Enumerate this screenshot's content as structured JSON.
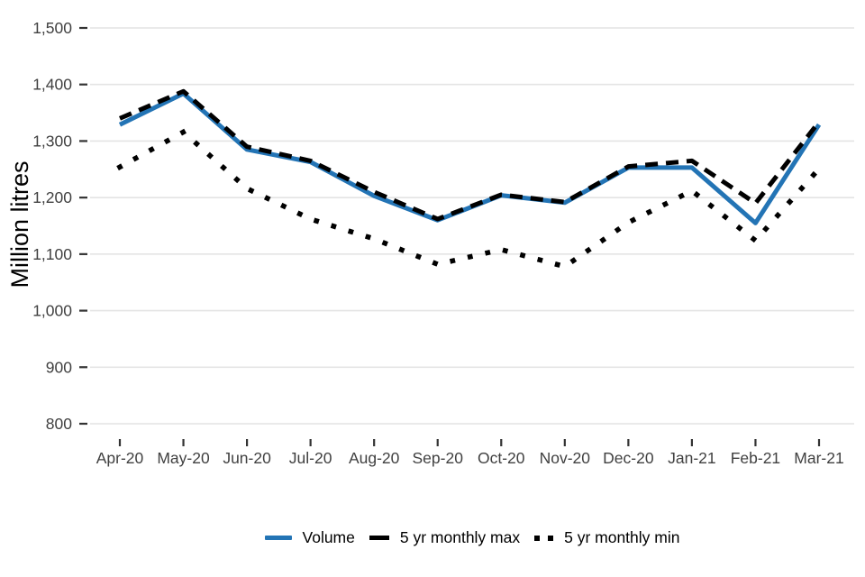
{
  "chart_data": {
    "type": "line",
    "title": "",
    "xlabel": "",
    "ylabel": "Million litres",
    "categories": [
      "Apr-20",
      "May-20",
      "Jun-20",
      "Jul-20",
      "Aug-20",
      "Sep-20",
      "Oct-20",
      "Nov-20",
      "Dec-20",
      "Jan-21",
      "Feb-21",
      "Mar-21"
    ],
    "series": [
      {
        "name": "Volume",
        "color": "#2374B5",
        "style": "solid",
        "values": [
          1329,
          1384,
          1285,
          1263,
          1203,
          1160,
          1204,
          1191,
          1253,
          1253,
          1155,
          1329
        ]
      },
      {
        "name": "5 yr monthly max",
        "color": "#000000",
        "style": "dashed",
        "values": [
          1340,
          1388,
          1290,
          1265,
          1210,
          1162,
          1205,
          1192,
          1255,
          1265,
          1190,
          1334
        ]
      },
      {
        "name": "5 yr monthly min",
        "color": "#000000",
        "style": "dotted",
        "values": [
          1254,
          1316,
          1216,
          1162,
          1127,
          1082,
          1108,
          1078,
          1156,
          1212,
          1124,
          1251
        ]
      }
    ],
    "ylim": [
      800,
      1500
    ],
    "yticks": [
      {
        "value": 1500,
        "label": "1,500"
      },
      {
        "value": 1400,
        "label": "1,400"
      },
      {
        "value": 1300,
        "label": "1,300"
      },
      {
        "value": 1200,
        "label": "1,200"
      },
      {
        "value": 1100,
        "label": "1,100"
      },
      {
        "value": 1000,
        "label": "1,000"
      },
      {
        "value": 900,
        "label": "900"
      },
      {
        "value": 800,
        "label": "800"
      }
    ],
    "grid": "horizontal-only",
    "legend_position": "bottom-center"
  },
  "colors": {
    "background": "#FFFFFF",
    "gridline": "#E4E4E4",
    "tick_mark": "#333333",
    "tick_label": "#404040",
    "axis_title": "#000000",
    "legend_text": "#000000"
  }
}
